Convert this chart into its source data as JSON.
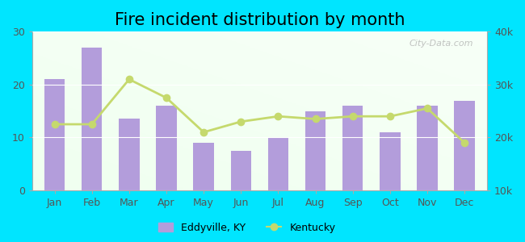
{
  "title": "Fire incident distribution by month",
  "months": [
    "Jan",
    "Feb",
    "Mar",
    "Apr",
    "May",
    "Jun",
    "Jul",
    "Aug",
    "Sep",
    "Oct",
    "Nov",
    "Dec"
  ],
  "bar_values": [
    21,
    27,
    13.5,
    16,
    9,
    7.5,
    10,
    15,
    16,
    11,
    16,
    17
  ],
  "line_values": [
    22500,
    22500,
    31000,
    27500,
    21000,
    23000,
    24000,
    23500,
    24000,
    24000,
    25500,
    19000
  ],
  "bar_color": "#b39ddb",
  "line_color": "#c5d96d",
  "line_marker": "o",
  "outer_bg": "#00e5ff",
  "ylim_left": [
    0,
    30
  ],
  "ylim_right": [
    10000,
    40000
  ],
  "yticks_left": [
    0,
    10,
    20,
    30
  ],
  "yticks_right": [
    10000,
    20000,
    30000,
    40000
  ],
  "ytick_labels_right": [
    "10k",
    "20k",
    "30k",
    "40k"
  ],
  "ytick_labels_left": [
    "0",
    "10",
    "20",
    "30"
  ],
  "legend_eddyville": "Eddyville, KY",
  "legend_kentucky": "Kentucky",
  "title_fontsize": 15,
  "watermark": "City-Data.com"
}
